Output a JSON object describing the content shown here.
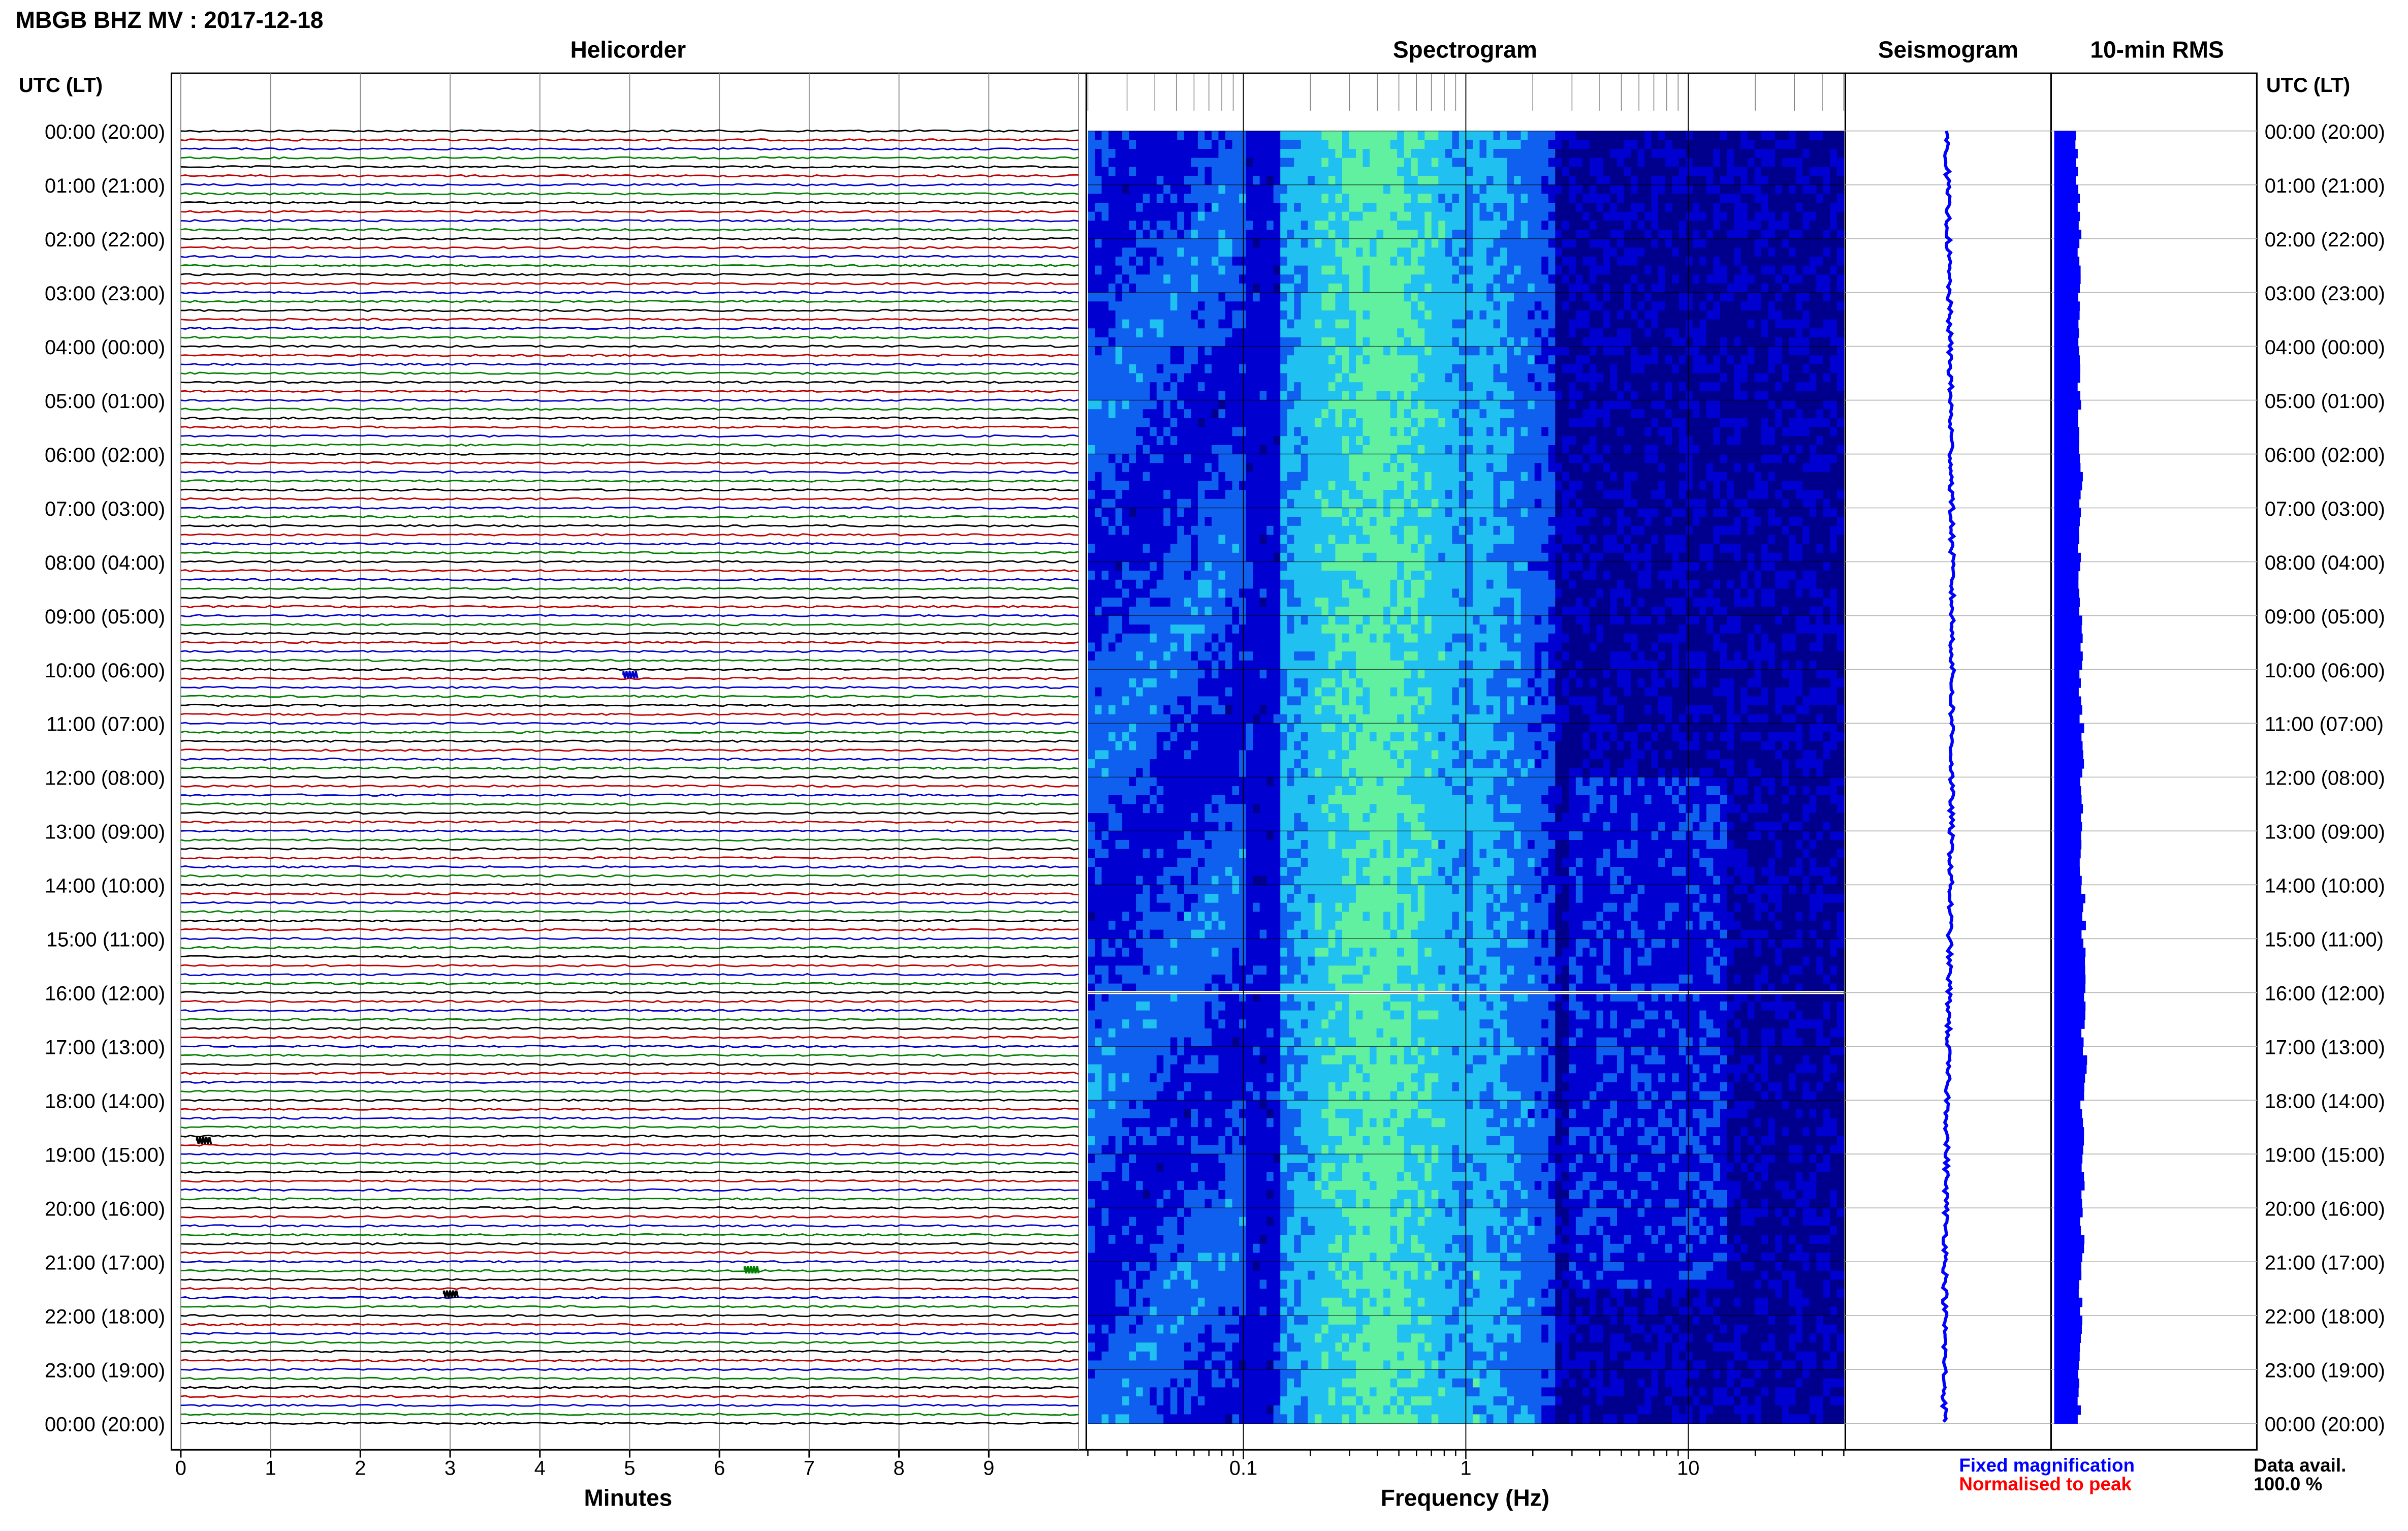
{
  "chart_data": [
    {
      "type": "line",
      "panel": "helicorder",
      "title": "Helicorder",
      "xlabel": "Minutes",
      "ylabel": "UTC (LT)",
      "xticks": [
        "0",
        "1",
        "2",
        "3",
        "4",
        "5",
        "6",
        "7",
        "8",
        "9"
      ],
      "xlim": [
        0,
        10
      ],
      "traces_per_hour": 6,
      "trace_colors": [
        "#000000",
        "#c00000",
        "#0000cc",
        "#008000"
      ],
      "events": [
        {
          "hour": 10.1,
          "minute": 5.0,
          "color": "#0000cc"
        },
        {
          "hour": 18.75,
          "minute": 0.25,
          "color": "#000000"
        },
        {
          "hour": 21.15,
          "minute": 6.35,
          "color": "#008000"
        },
        {
          "hour": 21.6,
          "minute": 3.0,
          "color": "#000000"
        }
      ]
    },
    {
      "type": "heatmap",
      "panel": "spectrogram",
      "title": "Spectrogram",
      "xlabel": "Frequency (Hz)",
      "xscale": "log",
      "xlim": [
        0.02,
        50
      ],
      "xticks": [
        "0.1",
        "1",
        "10"
      ],
      "colormap": [
        "#00008c",
        "#0000d0",
        "#1060f0",
        "#20c0f0",
        "#60f0a0"
      ],
      "peak_band_hz": [
        0.2,
        0.6
      ],
      "gap_hour": 16.0
    },
    {
      "type": "line",
      "panel": "seismogram",
      "title": "Seismogram",
      "color": "#0000ff"
    },
    {
      "type": "bar",
      "panel": "rms",
      "title": "10-min RMS",
      "color": "#0000ff",
      "orientation": "horizontal",
      "values_relative": [
        0.8,
        0.9,
        0.9,
        0.85,
        0.9,
        0.9,
        0.95,
        0.9,
        0.9,
        0.95,
        0.95,
        1.0,
        0.95,
        0.95,
        1.05,
        1.1,
        1.05,
        1.1,
        1.0,
        1.05,
        1.0,
        0.95,
        0.95,
        0.9
      ]
    }
  ],
  "header": {
    "title": "MBGB BHZ MV : 2017-12-18"
  },
  "axis_label": "UTC (LT)",
  "time_labels": [
    "00:00 (20:00)",
    "01:00 (21:00)",
    "02:00 (22:00)",
    "03:00 (23:00)",
    "04:00 (00:00)",
    "05:00 (01:00)",
    "06:00 (02:00)",
    "07:00 (03:00)",
    "08:00 (04:00)",
    "09:00 (05:00)",
    "10:00 (06:00)",
    "11:00 (07:00)",
    "12:00 (08:00)",
    "13:00 (09:00)",
    "14:00 (10:00)",
    "15:00 (11:00)",
    "16:00 (12:00)",
    "17:00 (13:00)",
    "18:00 (14:00)",
    "19:00 (15:00)",
    "20:00 (16:00)",
    "21:00 (17:00)",
    "22:00 (18:00)",
    "23:00 (19:00)",
    "00:00 (20:00)"
  ],
  "legend": {
    "fixed": "Fixed magnification",
    "fixed_color": "#0000ff",
    "normalised": "Normalised to peak",
    "normalised_color": "#ff0000",
    "avail_label": "Data avail.",
    "avail_value": "100.0 %"
  }
}
